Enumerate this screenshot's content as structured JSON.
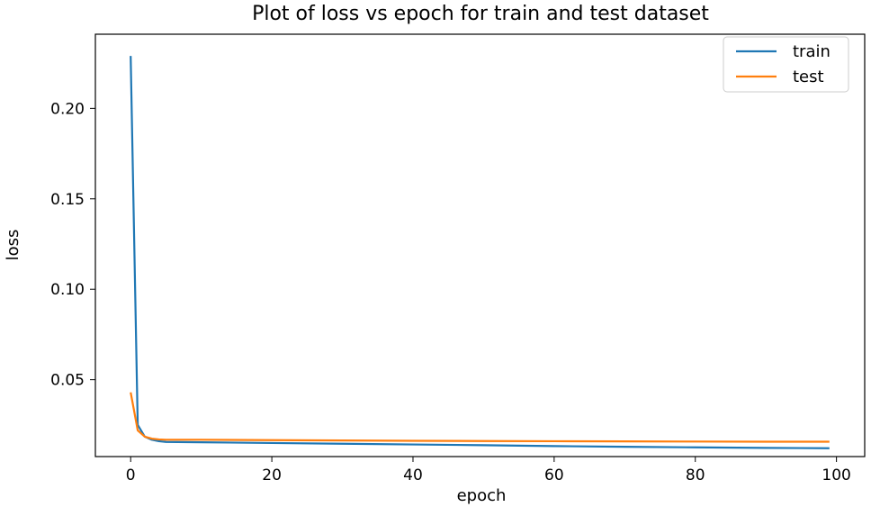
{
  "chart_data": {
    "type": "line",
    "title": "Plot of loss vs epoch for train and test dataset",
    "xlabel": "epoch",
    "ylabel": "loss",
    "xlim": [
      -5,
      104
    ],
    "ylim": [
      0.0075,
      0.241
    ],
    "xticks": [
      0,
      20,
      40,
      60,
      80,
      100
    ],
    "yticks": [
      0.05,
      0.1,
      0.15,
      0.2
    ],
    "ytick_labels": [
      "0.05",
      "0.10",
      "0.15",
      "0.20"
    ],
    "grid": false,
    "legend_position": "top-right",
    "series": [
      {
        "name": "train",
        "color": "#1f77b4",
        "x": [
          0,
          1,
          2,
          3,
          4,
          5,
          10,
          20,
          30,
          40,
          50,
          60,
          70,
          80,
          90,
          99
        ],
        "y": [
          0.229,
          0.025,
          0.0185,
          0.0168,
          0.016,
          0.0156,
          0.0154,
          0.015,
          0.0146,
          0.0142,
          0.0138,
          0.0133,
          0.0129,
          0.0126,
          0.0123,
          0.0121
        ]
      },
      {
        "name": "test",
        "color": "#ff7f0e",
        "x": [
          0,
          1,
          2,
          3,
          4,
          5,
          10,
          20,
          30,
          40,
          50,
          60,
          70,
          80,
          90,
          99
        ],
        "y": [
          0.043,
          0.022,
          0.0185,
          0.0174,
          0.017,
          0.0168,
          0.0168,
          0.0166,
          0.0164,
          0.0162,
          0.0161,
          0.016,
          0.0159,
          0.0158,
          0.0157,
          0.0157
        ]
      }
    ]
  }
}
